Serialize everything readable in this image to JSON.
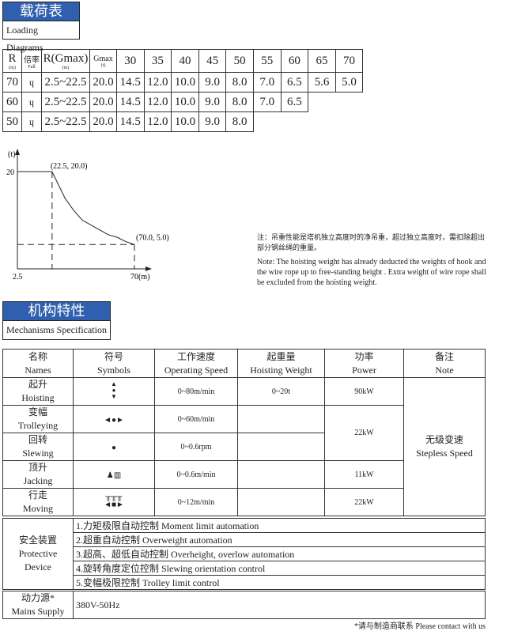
{
  "loading": {
    "title_cn": "载荷表",
    "title_en": "Loading Diagrams",
    "headers": {
      "r": "R",
      "r_unit": "(m)",
      "fall": "倍率",
      "fall_en": "Fall",
      "rg": "R(Gmax)",
      "rg_unit": "(m)",
      "gmax": "Gmax",
      "gmax_unit": "(t)",
      "radii": [
        "30",
        "35",
        "40",
        "45",
        "50",
        "55",
        "60",
        "65",
        "70"
      ]
    },
    "rows": [
      {
        "r": "70",
        "rg": "2.5~22.5",
        "gmax": "20.0",
        "loads": [
          "14.5",
          "12.0",
          "10.0",
          "9.0",
          "8.0",
          "7.0",
          "6.5",
          "5.6",
          "5.0"
        ]
      },
      {
        "r": "60",
        "rg": "2.5~22.5",
        "gmax": "20.0",
        "loads": [
          "14.5",
          "12.0",
          "10.0",
          "9.0",
          "8.0",
          "7.0",
          "6.5"
        ]
      },
      {
        "r": "50",
        "rg": "2.5~22.5",
        "gmax": "20.0",
        "loads": [
          "14.5",
          "12.0",
          "10.0",
          "9.0",
          "8.0"
        ]
      }
    ],
    "fall_icon": "hook-icon"
  },
  "chart_data": {
    "type": "line",
    "ylabel": "(t)",
    "xlabel": "(m)",
    "x_ticks": [
      "2.5",
      "70"
    ],
    "y_ticks": [
      "20"
    ],
    "points": [
      [
        2.5,
        20.0
      ],
      [
        22.5,
        20.0
      ],
      [
        30,
        14.5
      ],
      [
        35,
        12.0
      ],
      [
        40,
        10.0
      ],
      [
        45,
        9.0
      ],
      [
        50,
        8.0
      ],
      [
        55,
        7.0
      ],
      [
        60,
        6.5
      ],
      [
        65,
        5.6
      ],
      [
        70,
        5.0
      ]
    ],
    "annotations": [
      "(22.5, 20.0)",
      "(70.0, 5.0)"
    ],
    "x_tick_label": "70(m)"
  },
  "note": {
    "cn": "注：吊重性能是塔机独立高度时的净吊重，超过独立高度时，需扣除超出部分钢丝绳的重量。",
    "en": "Note: The hoisting weight has already deducted the weights of hook and the wire rope up to free-standing height . Extra weight of wire rope shall be excluded from the hoisting weight."
  },
  "mech": {
    "title_cn": "机构特性",
    "title_en": "Mechanisms Specification",
    "headers": [
      [
        "名称",
        "Names"
      ],
      [
        "符号",
        "Symbols"
      ],
      [
        "工作速度",
        "Operating Speed"
      ],
      [
        "起重量",
        "Hoisting Weight"
      ],
      [
        "功率",
        "Power"
      ],
      [
        "备注",
        "Note"
      ]
    ],
    "rows": [
      {
        "cn": "起升",
        "en": "Hoisting",
        "icon": "hoisting-icon",
        "speed": "0~80m/min",
        "weight": "0~20t",
        "power": "90kW"
      },
      {
        "cn": "变幅",
        "en": "Trolleying",
        "icon": "trolleying-icon",
        "speed": "0~60m/min",
        "weight": "",
        "power": "22kW"
      },
      {
        "cn": "回转",
        "en": "Slewing",
        "icon": "slewing-icon",
        "speed": "0~0.6rpm",
        "weight": ""
      },
      {
        "cn": "顶升",
        "en": "Jacking",
        "icon": "jacking-icon",
        "speed": "0~0.6m/min",
        "weight": "",
        "power": "11kW"
      },
      {
        "cn": "行走",
        "en": "Moving",
        "icon": "moving-icon",
        "speed": "0~12m/min",
        "weight": "",
        "power": "22kW"
      }
    ],
    "note_cn": "无级变速",
    "note_en": "Stepless Speed"
  },
  "protective": {
    "label_cn": "安全装置",
    "label_en1": "Protective",
    "label_en2": "Device",
    "items": [
      "1.力矩极限自动控制  Moment limit automation",
      "2.超重自动控制  Overweight automation",
      "3.超高、超低自动控制  Overheight, overlow automation",
      "4.旋转角度定位控制  Slewing orientation control",
      "5.变幅极限控制  Trolley limit control"
    ]
  },
  "mains": {
    "label_cn": "动力源*",
    "label_en": "Mains Supply",
    "value": "380V-50Hz"
  },
  "footer": "*请与制造商联系  Please contact with us"
}
